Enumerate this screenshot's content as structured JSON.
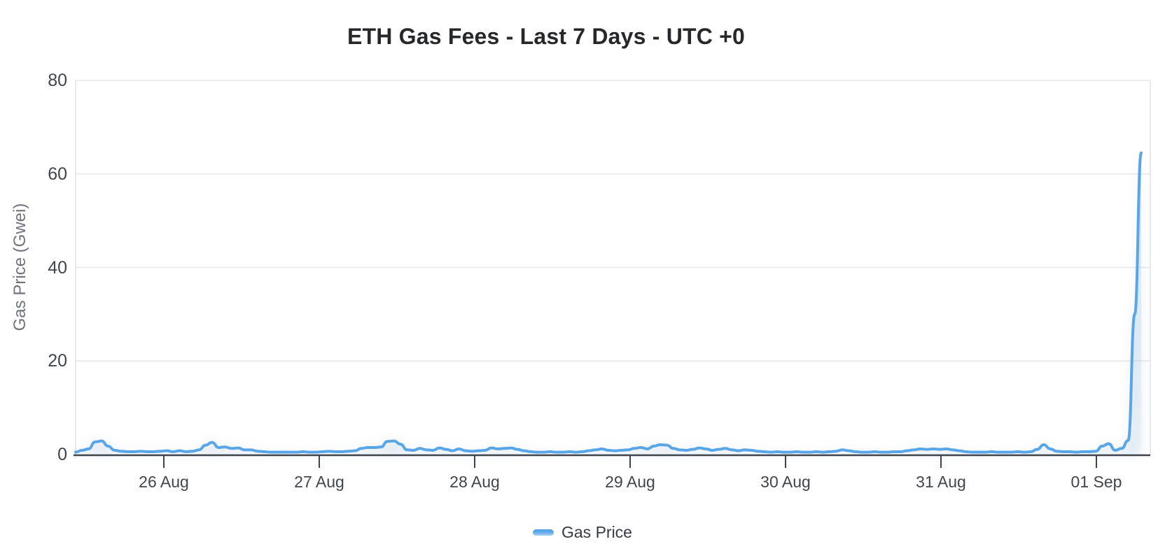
{
  "chart_data": {
    "type": "area",
    "title": "ETH Gas Fees - Last 7 Days - UTC +0",
    "ylabel": "Gas Price (Gwei)",
    "xlabel": "",
    "series_name": "Gas Price",
    "legend_position": "bottom",
    "grid": "horizontal-only",
    "x_ticks": [
      "26 Aug",
      "27 Aug",
      "28 Aug",
      "29 Aug",
      "30 Aug",
      "31 Aug",
      "01 Sep"
    ],
    "y_ticks": [
      0,
      20,
      40,
      60,
      80
    ],
    "ylim": [
      0,
      80
    ],
    "x_unit": "hourly samples from 25 Aug ~12:00 UTC to 01 Sep ~08:00 UTC",
    "line_color": "#58a6e8",
    "grid_color": "#e7e7ea",
    "axis_color": "#3f434b",
    "peak_value_gwei": 64.5,
    "values": [
      0.5,
      0.9,
      1.2,
      2.7,
      2.9,
      1.8,
      0.9,
      0.7,
      0.6,
      0.6,
      0.7,
      0.6,
      0.6,
      0.7,
      0.8,
      0.6,
      0.8,
      0.6,
      0.7,
      1.0,
      2.0,
      2.6,
      1.5,
      1.6,
      1.3,
      1.4,
      1.0,
      1.0,
      0.7,
      0.6,
      0.5,
      0.5,
      0.5,
      0.5,
      0.5,
      0.6,
      0.5,
      0.5,
      0.6,
      0.7,
      0.6,
      0.6,
      0.7,
      0.8,
      1.3,
      1.5,
      1.5,
      1.6,
      2.8,
      2.9,
      2.2,
      1.0,
      0.9,
      1.3,
      1.0,
      0.9,
      1.4,
      1.1,
      0.8,
      1.2,
      0.8,
      0.7,
      0.8,
      0.9,
      1.4,
      1.2,
      1.3,
      1.4,
      1.1,
      0.8,
      0.6,
      0.5,
      0.5,
      0.6,
      0.5,
      0.5,
      0.6,
      0.5,
      0.6,
      0.8,
      1.0,
      1.2,
      0.9,
      0.8,
      0.9,
      1.0,
      1.3,
      1.5,
      1.2,
      1.8,
      2.1,
      2.0,
      1.3,
      1.0,
      0.9,
      1.1,
      1.4,
      1.2,
      0.9,
      1.1,
      1.3,
      1.0,
      0.8,
      1.0,
      0.9,
      0.7,
      0.6,
      0.5,
      0.6,
      0.5,
      0.5,
      0.6,
      0.5,
      0.5,
      0.6,
      0.5,
      0.6,
      0.7,
      1.0,
      0.8,
      0.6,
      0.5,
      0.5,
      0.6,
      0.5,
      0.5,
      0.6,
      0.6,
      0.8,
      1.0,
      1.2,
      1.1,
      1.2,
      1.1,
      1.2,
      1.0,
      0.8,
      0.6,
      0.5,
      0.5,
      0.5,
      0.6,
      0.5,
      0.5,
      0.5,
      0.6,
      0.5,
      0.6,
      1.1,
      2.1,
      1.2,
      0.7,
      0.6,
      0.6,
      0.5,
      0.6,
      0.6,
      0.7,
      1.8,
      2.3,
      0.9,
      1.3,
      3.0,
      30,
      64.5
    ]
  }
}
